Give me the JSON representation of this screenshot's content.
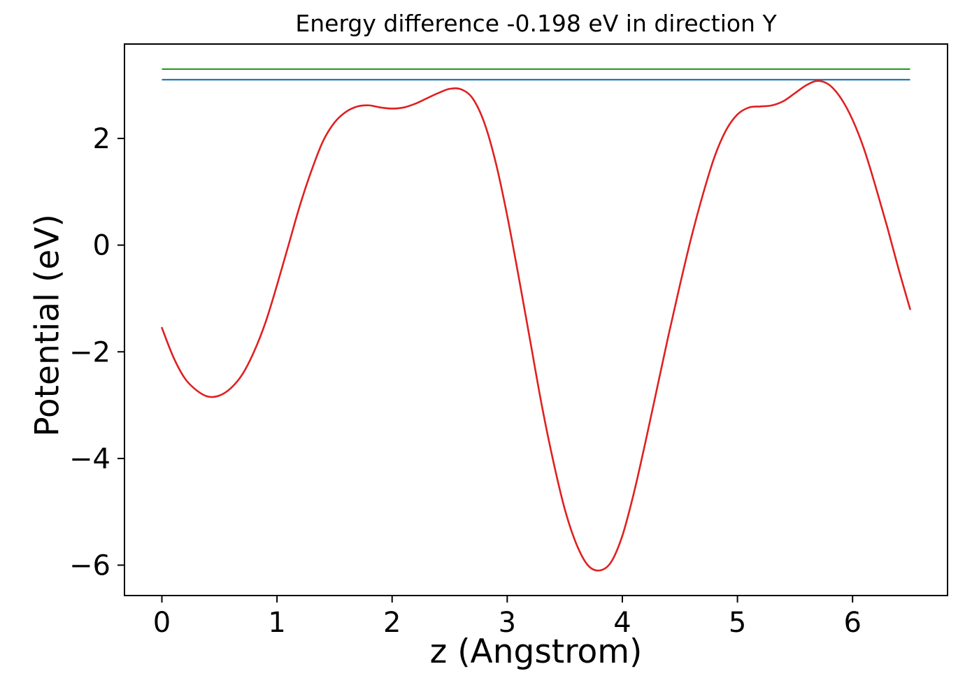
{
  "figure": {
    "title": "Energy difference -0.198 eV in direction Y",
    "xlabel": "z (Angstrom)",
    "ylabel": "Potential (eV)"
  },
  "chart_data": {
    "type": "line",
    "title": "Energy difference -0.198 eV in direction Y",
    "xlabel": "z (Angstrom)",
    "ylabel": "Potential (eV)",
    "xlim": [
      -0.325,
      6.825
    ],
    "ylim": [
      -6.57,
      3.77
    ],
    "xticks": [
      0,
      1,
      2,
      3,
      4,
      5,
      6
    ],
    "yticks": [
      -6,
      -4,
      -2,
      0,
      2
    ],
    "grid": false,
    "legend_position": "none",
    "series": [
      {
        "name": "potential-curve",
        "color": "#e02020",
        "line_width": 2.6,
        "x": [
          0.0,
          0.1,
          0.2,
          0.3,
          0.4,
          0.5,
          0.6,
          0.7,
          0.8,
          0.9,
          1.0,
          1.1,
          1.2,
          1.3,
          1.4,
          1.5,
          1.6,
          1.7,
          1.8,
          1.9,
          2.0,
          2.1,
          2.2,
          2.3,
          2.4,
          2.5,
          2.6,
          2.7,
          2.8,
          2.9,
          3.0,
          3.1,
          3.2,
          3.3,
          3.4,
          3.5,
          3.6,
          3.7,
          3.8,
          3.9,
          4.0,
          4.1,
          4.2,
          4.3,
          4.4,
          4.5,
          4.6,
          4.7,
          4.8,
          4.9,
          5.0,
          5.1,
          5.2,
          5.3,
          5.4,
          5.5,
          5.6,
          5.7,
          5.8,
          5.9,
          6.0,
          6.1,
          6.2,
          6.3,
          6.4,
          6.5
        ],
        "y": [
          -1.55,
          -2.1,
          -2.5,
          -2.72,
          -2.84,
          -2.82,
          -2.68,
          -2.42,
          -2.0,
          -1.45,
          -0.75,
          0.0,
          0.75,
          1.4,
          1.95,
          2.3,
          2.5,
          2.6,
          2.62,
          2.58,
          2.56,
          2.58,
          2.65,
          2.75,
          2.85,
          2.93,
          2.92,
          2.75,
          2.3,
          1.55,
          0.55,
          -0.6,
          -1.8,
          -3.0,
          -4.05,
          -4.95,
          -5.6,
          -6.0,
          -6.1,
          -5.95,
          -5.45,
          -4.65,
          -3.7,
          -2.7,
          -1.7,
          -0.75,
          0.15,
          0.95,
          1.65,
          2.15,
          2.45,
          2.58,
          2.6,
          2.62,
          2.7,
          2.85,
          3.0,
          3.08,
          3.0,
          2.75,
          2.35,
          1.8,
          1.1,
          0.35,
          -0.45,
          -1.2
        ]
      }
    ],
    "hlines": [
      {
        "name": "green-reference-line",
        "color": "#2ca02c",
        "y": 3.3,
        "x_start": 0.0,
        "x_end": 6.5,
        "line_width": 2.2
      },
      {
        "name": "blue-reference-line",
        "color": "#1f77b4",
        "y": 3.102,
        "x_start": 0.0,
        "x_end": 6.5,
        "line_width": 2.2
      }
    ]
  }
}
